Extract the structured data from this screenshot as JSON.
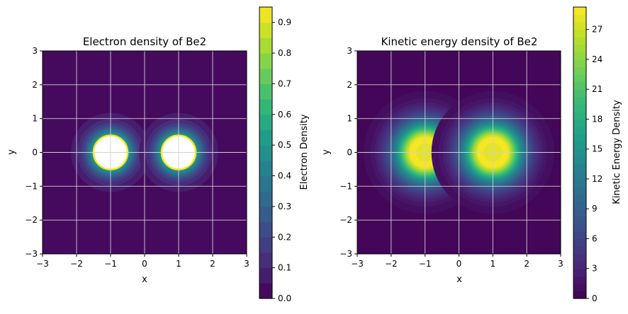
{
  "chart_data": [
    {
      "type": "heatmap",
      "title": "Electron density of Be2",
      "xlabel": "x",
      "ylabel": "y",
      "xlim": [
        -3,
        3
      ],
      "ylim": [
        -3,
        3
      ],
      "x_ticks": [
        "−3",
        "−2",
        "−1",
        "0",
        "1",
        "2",
        "3"
      ],
      "y_ticks": [
        "−3",
        "−2",
        "−1",
        "0",
        "1",
        "2",
        "3"
      ],
      "grid": true,
      "nuclei": [
        {
          "x": -1,
          "y": 0
        },
        {
          "x": 1,
          "y": 0
        }
      ],
      "colorbar": {
        "label": "Electron Density",
        "min": 0,
        "max": 0.95,
        "ticks": [
          "0.0",
          "0.1",
          "0.2",
          "0.3",
          "0.4",
          "0.5",
          "0.6",
          "0.7",
          "0.8",
          "0.9"
        ],
        "colormap": "viridis",
        "levels": 19
      },
      "saturated_above": 0.95
    },
    {
      "type": "heatmap",
      "title": "Kinetic energy density of Be2",
      "xlabel": "x",
      "ylabel": "y",
      "xlim": [
        -3,
        3
      ],
      "ylim": [
        -3,
        3
      ],
      "x_ticks": [
        "−3",
        "−2",
        "−1",
        "0",
        "1",
        "2",
        "3"
      ],
      "y_ticks": [
        "−3",
        "−2",
        "−1",
        "0",
        "1",
        "2",
        "3"
      ],
      "grid": true,
      "nuclei": [
        {
          "x": -1,
          "y": 0
        },
        {
          "x": 1,
          "y": 0
        }
      ],
      "colorbar": {
        "label": "Kinetic Energy Density",
        "min": 0,
        "max": 29.25,
        "ticks": [
          "0",
          "3",
          "6",
          "9",
          "12",
          "15",
          "18",
          "21",
          "24",
          "27"
        ],
        "colormap": "viridis",
        "levels": 39
      }
    }
  ]
}
